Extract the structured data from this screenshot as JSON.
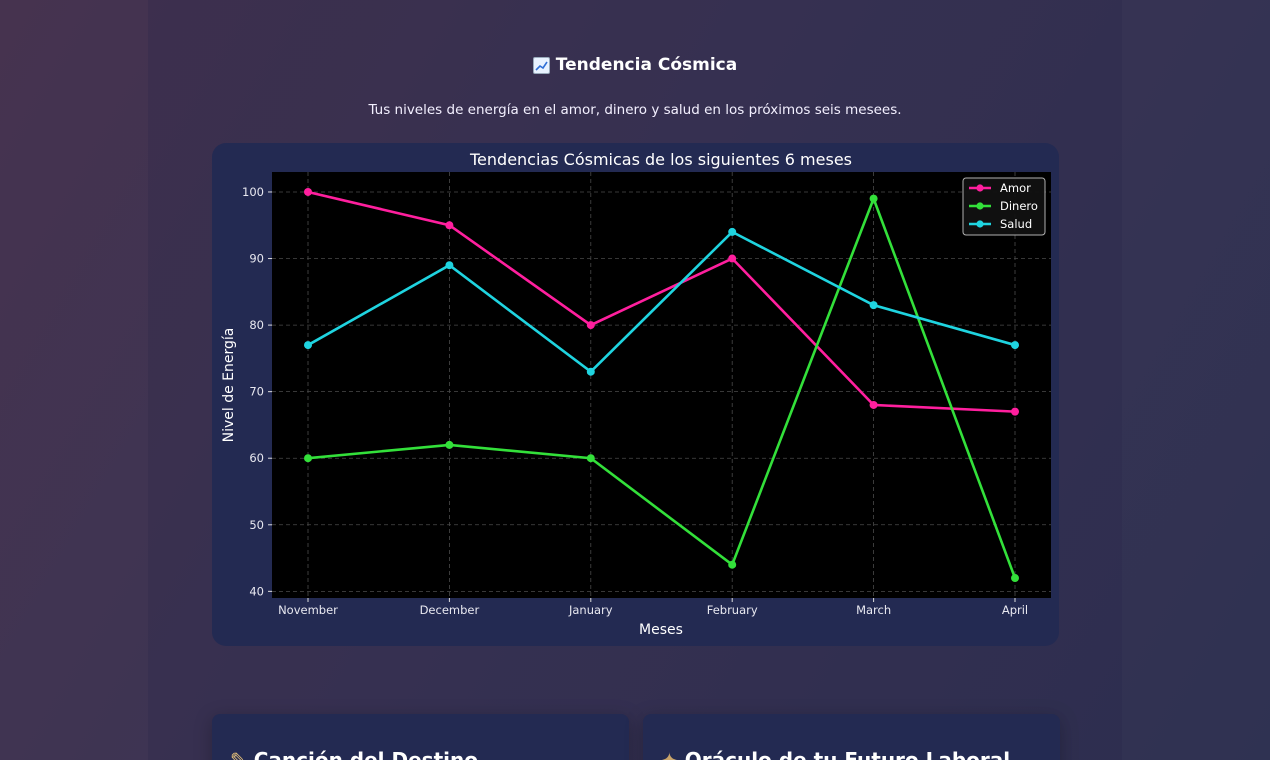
{
  "header": {
    "icon": "chart-increasing-icon",
    "title": "Tendencia Cósmica",
    "subtitle": "Tus niveles de energía en el amor, dinero y salud en los próximos seis mesees."
  },
  "chart_data": {
    "type": "line",
    "title": "Tendencias Cósmicas de los siguientes 6 meses",
    "xlabel": "Meses",
    "ylabel": "Nivel de Energía",
    "categories": [
      "November",
      "December",
      "January",
      "February",
      "March",
      "April"
    ],
    "ylim": [
      39,
      103
    ],
    "yticks": [
      40,
      50,
      60,
      70,
      80,
      90,
      100
    ],
    "grid": true,
    "legend": "top-right",
    "series": [
      {
        "name": "Amor",
        "color": "#ff1f9e",
        "values": [
          100,
          95,
          80,
          90,
          68,
          67
        ]
      },
      {
        "name": "Dinero",
        "color": "#33e03a",
        "values": [
          60,
          62,
          60,
          44,
          99,
          42
        ]
      },
      {
        "name": "Salud",
        "color": "#1fd4e0",
        "values": [
          77,
          89,
          73,
          94,
          83,
          77
        ]
      }
    ]
  },
  "cards": [
    {
      "icon": "quill-icon",
      "title": "Canción del Destino"
    },
    {
      "icon": "briefcase-icon",
      "title": "Oráculo de tu Futuro Laboral"
    }
  ]
}
